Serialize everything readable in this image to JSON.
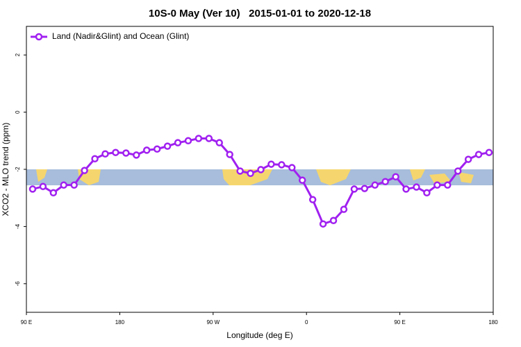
{
  "chart_data": {
    "type": "line",
    "title": "10S-0 May (Ver 10)   2015-01-01 to 2020-12-18",
    "xlabel": "Longitude (deg E)",
    "ylabel": "XCO2 - MLO trend (ppm)",
    "xlim": [
      90,
      540
    ],
    "ylim": [
      -7,
      3
    ],
    "xticks": [
      {
        "value": 90,
        "label": "90 E"
      },
      {
        "value": 180,
        "label": "180"
      },
      {
        "value": 270,
        "label": "90 W"
      },
      {
        "value": 360,
        "label": "0"
      },
      {
        "value": 450,
        "label": "90 E"
      },
      {
        "value": 540,
        "label": "180"
      }
    ],
    "yticks": [
      2,
      0,
      -2,
      -4,
      -6
    ],
    "legend": "top-left",
    "x": [
      96,
      106,
      116,
      126,
      136,
      146,
      156,
      166,
      176,
      186,
      196,
      206,
      216,
      226,
      236,
      246,
      256,
      266,
      276,
      286,
      296,
      306,
      316,
      326,
      336,
      346,
      356,
      366,
      376,
      386,
      396,
      406,
      416,
      426,
      436,
      446,
      456,
      466,
      476,
      486,
      496,
      506,
      516,
      526,
      536
    ],
    "series": [
      {
        "name": "Land (Nadir&Glint) and Ocean (Glint)",
        "color": "#a020f0",
        "values": [
          -2.69,
          -2.6,
          -2.82,
          -2.55,
          -2.55,
          -2.04,
          -1.63,
          -1.46,
          -1.41,
          -1.43,
          -1.5,
          -1.33,
          -1.29,
          -1.19,
          -1.07,
          -1.0,
          -0.92,
          -0.92,
          -1.07,
          -1.48,
          -2.06,
          -2.14,
          -2.01,
          -1.82,
          -1.84,
          -1.94,
          -2.38,
          -3.06,
          -3.91,
          -3.79,
          -3.4,
          -2.69,
          -2.67,
          -2.55,
          -2.43,
          -2.26,
          -2.69,
          -2.62,
          -2.82,
          -2.55,
          -2.55,
          -2.06,
          -1.65,
          -1.48,
          -1.41
        ]
      }
    ]
  }
}
